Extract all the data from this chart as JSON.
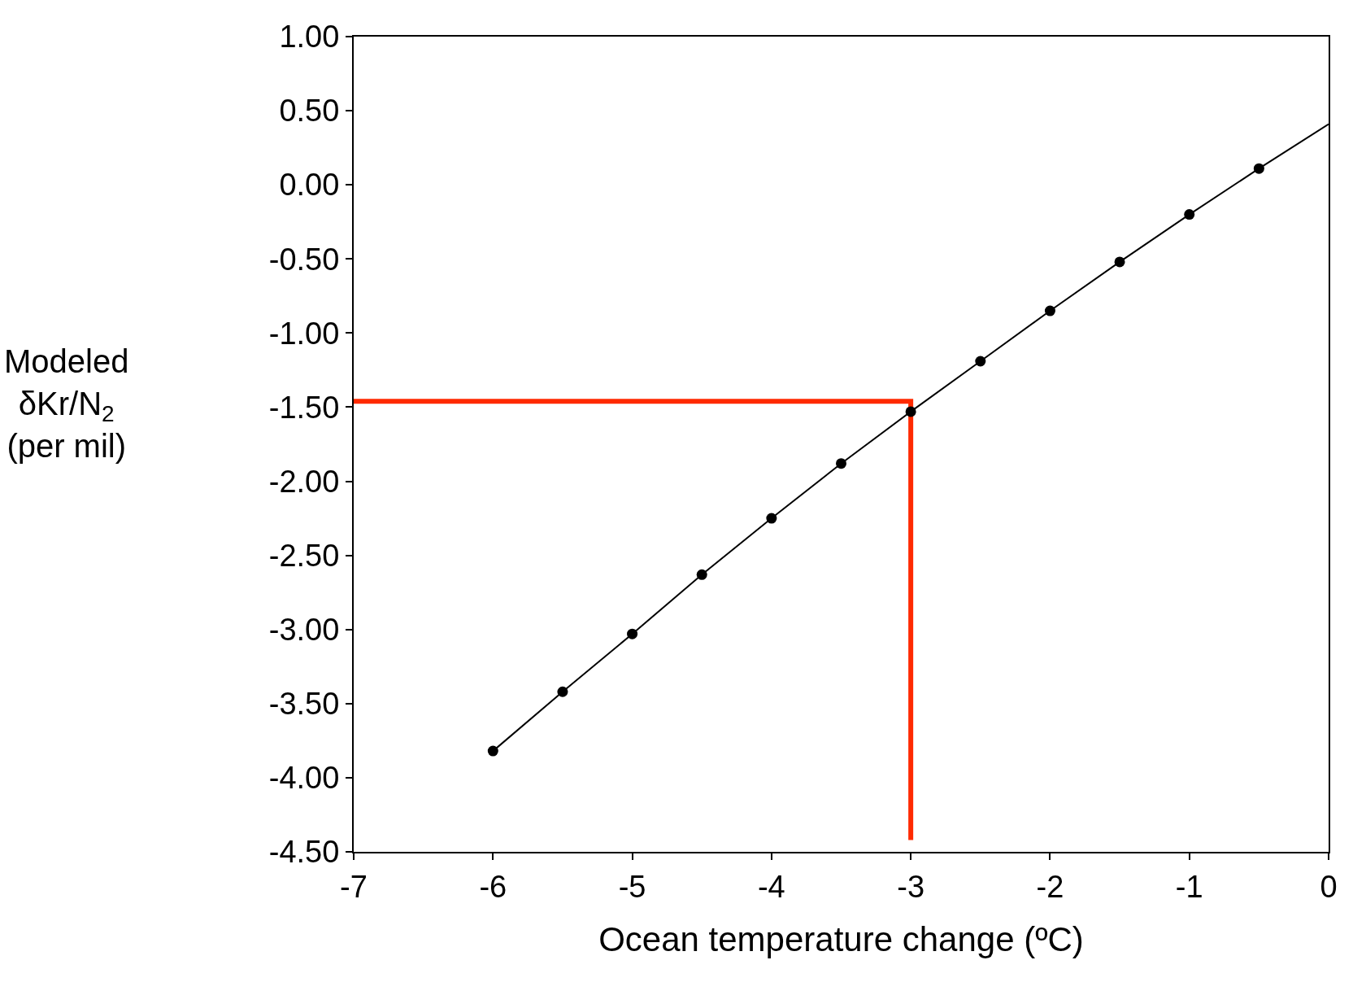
{
  "chart_data": {
    "type": "scatter",
    "xlabel": "Ocean temperature change (ºC)",
    "ylabel": "Modeled\nδKr/N$_{2}$\n(per mil)",
    "series": [
      {
        "type": "line",
        "color": "#ff2a00",
        "marker": "none",
        "x": [
          -7,
          -3,
          -3
        ],
        "values": [
          -1.46,
          -1.46,
          -4.42
        ]
      },
      {
        "type": "line",
        "color": "#000000",
        "marker": "none",
        "x": [
          -6,
          -5.5,
          -5,
          -4.5,
          -4,
          -3.5,
          -3,
          -2.5,
          -2,
          -1.5,
          -1,
          -0.5,
          0
        ],
        "values": [
          -3.82,
          -3.42,
          -3.03,
          -2.63,
          -2.25,
          -1.88,
          -1.53,
          -1.19,
          -0.85,
          -0.52,
          -0.2,
          0.11,
          0.41
        ]
      },
      {
        "color": "#000000",
        "marker": "circle",
        "x": [
          -6,
          -5.5,
          -5,
          -4.5,
          -4,
          -3.5,
          -3,
          -2.5,
          -2,
          -1.5,
          -1,
          -0.5
        ],
        "values": [
          -3.82,
          -3.42,
          -3.03,
          -2.63,
          -2.25,
          -1.88,
          -1.53,
          -1.19,
          -0.85,
          -0.52,
          -0.2,
          0.11
        ]
      }
    ],
    "xlim": [
      -7,
      0
    ],
    "xticks": [
      -7,
      -6,
      -5,
      -4,
      -3,
      -2,
      -1,
      0
    ],
    "ylim": [
      -4.5,
      1
    ],
    "yticks": [
      {
        "value": 1,
        "label": "1.00"
      },
      {
        "value": 0.5,
        "label": "0.50"
      },
      {
        "value": 0,
        "label": "0.00"
      },
      {
        "value": -0.5,
        "label": "-0.50"
      },
      {
        "value": -1,
        "label": "-1.00"
      },
      {
        "value": -1.5,
        "label": "-1.50"
      },
      {
        "value": -2,
        "label": "-2.00"
      },
      {
        "value": -2.5,
        "label": "-2.50"
      },
      {
        "value": -3,
        "label": "-3.00"
      },
      {
        "value": -3.5,
        "label": "-3.50"
      },
      {
        "value": -4,
        "label": "-4.00"
      },
      {
        "value": -4.5,
        "label": "-4.50"
      }
    ]
  }
}
